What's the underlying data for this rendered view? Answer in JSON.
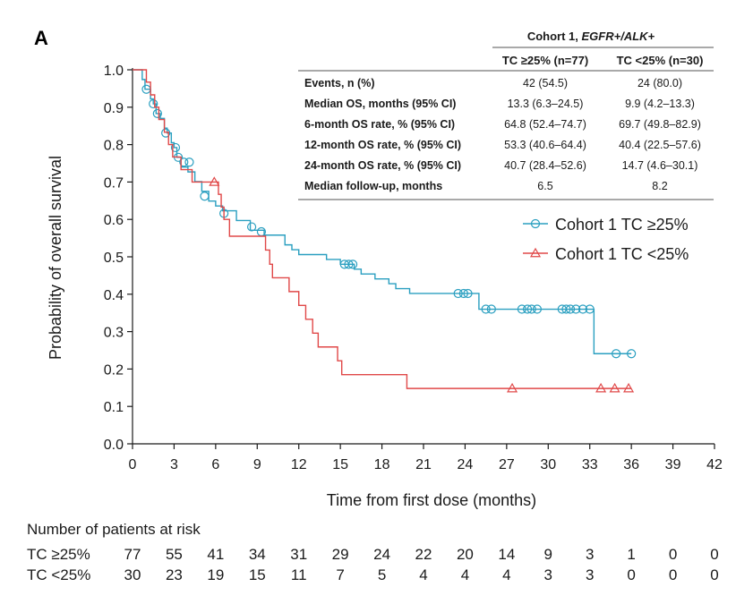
{
  "chart_data": {
    "type": "line",
    "panel_label": "A",
    "xlabel": "Time from first dose (months)",
    "ylabel": "Probability of overall survival",
    "xlim": [
      0,
      42
    ],
    "ylim": [
      0,
      1.0
    ],
    "xticks": [
      0,
      3,
      6,
      9,
      12,
      15,
      18,
      21,
      24,
      27,
      30,
      33,
      36,
      39,
      42
    ],
    "yticks": [
      "0.0",
      "0.1",
      "0.2",
      "0.3",
      "0.4",
      "0.5",
      "0.6",
      "0.7",
      "0.8",
      "0.9",
      "1.0"
    ],
    "colors": {
      "high": "#2a9fc0",
      "low": "#e04848"
    },
    "series": [
      {
        "name": "Cohort 1 TC ≥25%",
        "color": "#2a9fc0",
        "marker": "circle",
        "steps": [
          [
            0,
            1.0
          ],
          [
            0.7,
            0.974
          ],
          [
            0.9,
            0.948
          ],
          [
            1.3,
            0.922
          ],
          [
            1.5,
            0.909
          ],
          [
            1.7,
            0.883
          ],
          [
            2.0,
            0.87
          ],
          [
            2.3,
            0.844
          ],
          [
            2.5,
            0.831
          ],
          [
            2.8,
            0.805
          ],
          [
            3.0,
            0.792
          ],
          [
            3.2,
            0.766
          ],
          [
            3.5,
            0.74
          ],
          [
            4.0,
            0.727
          ],
          [
            4.5,
            0.701
          ],
          [
            5.0,
            0.675
          ],
          [
            5.5,
            0.649
          ],
          [
            6.0,
            0.636
          ],
          [
            6.5,
            0.623
          ],
          [
            7.5,
            0.597
          ],
          [
            8.5,
            0.571
          ],
          [
            9.5,
            0.558
          ],
          [
            11.0,
            0.532
          ],
          [
            11.5,
            0.519
          ],
          [
            12.0,
            0.506
          ],
          [
            14.0,
            0.493
          ],
          [
            15.0,
            0.48
          ],
          [
            16.0,
            0.467
          ],
          [
            16.5,
            0.454
          ],
          [
            17.5,
            0.441
          ],
          [
            18.5,
            0.428
          ],
          [
            19.0,
            0.415
          ],
          [
            20.0,
            0.402
          ],
          [
            25.0,
            0.36
          ],
          [
            33.3,
            0.241
          ],
          [
            36.0,
            0.241
          ]
        ],
        "censors": [
          [
            1.0,
            0.948
          ],
          [
            1.5,
            0.909
          ],
          [
            1.8,
            0.883
          ],
          [
            2.4,
            0.831
          ],
          [
            3.1,
            0.792
          ],
          [
            3.3,
            0.766
          ],
          [
            3.7,
            0.753
          ],
          [
            4.1,
            0.753
          ],
          [
            5.2,
            0.662
          ],
          [
            6.6,
            0.616
          ],
          [
            8.6,
            0.58
          ],
          [
            9.3,
            0.567
          ],
          [
            15.3,
            0.48
          ],
          [
            15.6,
            0.48
          ],
          [
            15.9,
            0.48
          ],
          [
            23.5,
            0.402
          ],
          [
            23.9,
            0.402
          ],
          [
            24.2,
            0.402
          ],
          [
            25.5,
            0.36
          ],
          [
            25.9,
            0.36
          ],
          [
            28.1,
            0.36
          ],
          [
            28.5,
            0.36
          ],
          [
            28.8,
            0.36
          ],
          [
            29.2,
            0.36
          ],
          [
            31.0,
            0.36
          ],
          [
            31.3,
            0.36
          ],
          [
            31.6,
            0.36
          ],
          [
            32.0,
            0.36
          ],
          [
            32.5,
            0.36
          ],
          [
            33.0,
            0.36
          ],
          [
            34.9,
            0.241
          ],
          [
            36.0,
            0.241
          ]
        ]
      },
      {
        "name": "Cohort 1 TC <25%",
        "color": "#e04848",
        "marker": "triangle",
        "steps": [
          [
            0,
            1.0
          ],
          [
            1.0,
            0.967
          ],
          [
            1.3,
            0.933
          ],
          [
            1.6,
            0.9
          ],
          [
            1.9,
            0.867
          ],
          [
            2.3,
            0.833
          ],
          [
            2.6,
            0.8
          ],
          [
            2.9,
            0.767
          ],
          [
            3.5,
            0.733
          ],
          [
            4.3,
            0.7
          ],
          [
            6.2,
            0.667
          ],
          [
            6.4,
            0.633
          ],
          [
            6.6,
            0.6
          ],
          [
            7.0,
            0.555
          ],
          [
            9.0,
            0.555
          ],
          [
            9.6,
            0.518
          ],
          [
            9.9,
            0.48
          ],
          [
            10.1,
            0.444
          ],
          [
            11.3,
            0.407
          ],
          [
            12.0,
            0.37
          ],
          [
            12.5,
            0.333
          ],
          [
            13.0,
            0.296
          ],
          [
            13.4,
            0.259
          ],
          [
            14.8,
            0.222
          ],
          [
            15.1,
            0.185
          ],
          [
            17.4,
            0.185
          ],
          [
            19.8,
            0.148
          ],
          [
            36.0,
            0.148
          ]
        ],
        "censors": [
          [
            5.9,
            0.7
          ],
          [
            27.4,
            0.148
          ],
          [
            33.8,
            0.148
          ],
          [
            34.8,
            0.148
          ],
          [
            35.8,
            0.148
          ]
        ]
      }
    ],
    "legend": [
      "Cohort 1 TC ≥25%",
      "Cohort 1 TC <25%"
    ],
    "legend_position": "right-middle",
    "table": {
      "title_prefix": "Cohort 1, ",
      "title_italic": "EGFR+/ALK+",
      "col_high": "TC ≥25% (n=77)",
      "col_low": "TC <25% (n=30)",
      "rows": [
        {
          "label": "Events, n (%)",
          "high": "42 (54.5)",
          "low": "24 (80.0)"
        },
        {
          "label": "Median OS, months (95% CI)",
          "high": "13.3 (6.3–24.5)",
          "low": "9.9 (4.2–13.3)"
        },
        {
          "label": "6-month OS rate, % (95% CI)",
          "high": "64.8 (52.4–74.7)",
          "low": "69.7 (49.8–82.9)"
        },
        {
          "label": "12-month OS rate, % (95% CI)",
          "high": "53.3 (40.6–64.4)",
          "low": "40.4 (22.5–57.6)"
        },
        {
          "label": "24-month OS rate, % (95% CI)",
          "high": "40.7 (28.4–52.6)",
          "low": "14.7 (4.6–30.1)"
        },
        {
          "label": "Median follow-up, months",
          "high": "6.5",
          "low": "8.2"
        }
      ]
    },
    "risk_table": {
      "title": "Number of patients at risk",
      "rows": [
        {
          "label": "TC ≥25%",
          "values": [
            77,
            55,
            41,
            34,
            31,
            29,
            24,
            22,
            20,
            14,
            9,
            3,
            1,
            0,
            0
          ]
        },
        {
          "label": "TC <25%",
          "values": [
            30,
            23,
            19,
            15,
            11,
            7,
            5,
            4,
            4,
            4,
            3,
            3,
            0,
            0,
            0
          ]
        }
      ]
    }
  }
}
